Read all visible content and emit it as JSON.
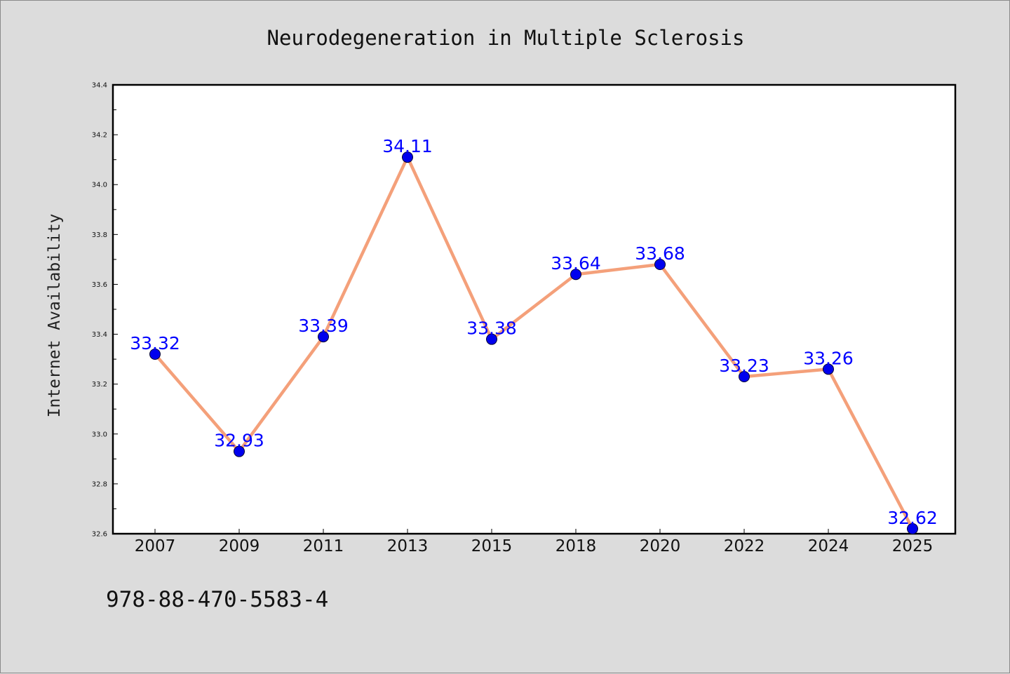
{
  "chart_data": {
    "type": "line",
    "title": "Neurodegeneration in Multiple Sclerosis",
    "xlabel": "",
    "ylabel": "Internet Availability",
    "categories": [
      "2007",
      "2009",
      "2011",
      "2013",
      "2015",
      "2018",
      "2020",
      "2022",
      "2024",
      "2025"
    ],
    "series": [
      {
        "values": [
          33.32,
          32.93,
          33.39,
          34.11,
          33.38,
          33.64,
          33.68,
          33.23,
          33.26,
          32.62
        ],
        "data_labels": [
          "33.32",
          "32.93",
          "33.39",
          "34.11",
          "33.38",
          "33.64",
          "33.68",
          "33.23",
          "33.26",
          "32.62"
        ],
        "line_color": "#f4a07a",
        "marker_color": "#0000ee",
        "label_color": "#0000ff"
      }
    ],
    "ylim": [
      32.6,
      34.4
    ],
    "yticks": [
      "32.6",
      "32.8",
      "33.0",
      "33.2",
      "33.4",
      "33.6",
      "33.8",
      "34.0",
      "34.2",
      "34.4"
    ],
    "grid": false,
    "legend": "none"
  },
  "footnote": "978-88-470-5583-4",
  "colors": {
    "background": "#dcdcdc",
    "plot_area": "#ffffff",
    "axes": "#000000"
  }
}
